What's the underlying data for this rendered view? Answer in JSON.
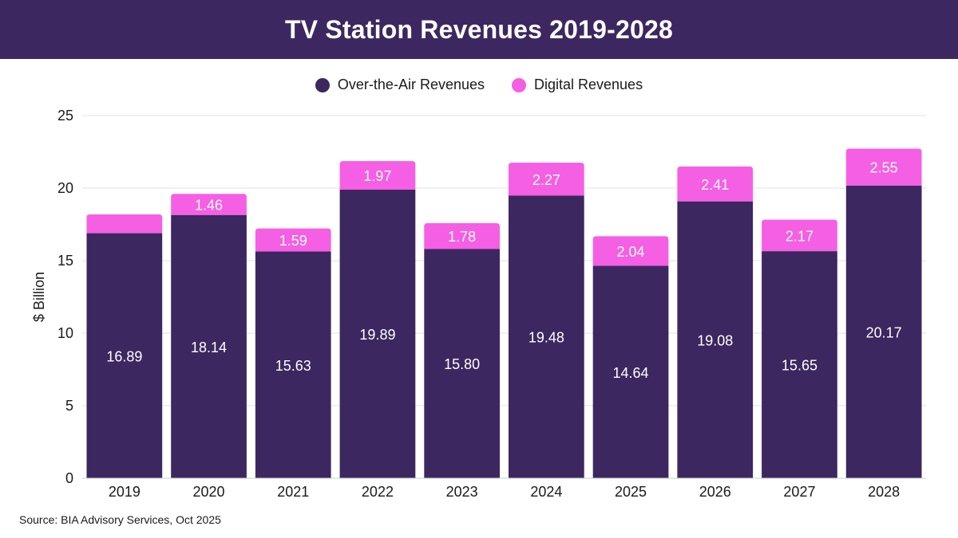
{
  "title": "TV Station Revenues 2019-2028",
  "source": "Source: BIA Advisory Services, Oct 2025",
  "colors": {
    "header_bg": "#3d2760",
    "ota": "#3d2760",
    "digital": "#f55fe4",
    "grid": "#e2e2e2",
    "axis": "#1a1a1a"
  },
  "legend": [
    {
      "label": "Over-the-Air Revenues",
      "color": "#3d2760"
    },
    {
      "label": "Digital Revenues",
      "color": "#f55fe4"
    }
  ],
  "chart_data": {
    "type": "bar",
    "stacked": true,
    "title": "TV Station Revenues 2019-2028",
    "xlabel": "",
    "ylabel": "$ Billion",
    "ylim": [
      0,
      25
    ],
    "yticks": [
      0,
      5,
      10,
      15,
      20,
      25
    ],
    "grid": true,
    "legend_position": "top-center",
    "categories": [
      "2019",
      "2020",
      "2021",
      "2022",
      "2023",
      "2024",
      "2025",
      "2026",
      "2027",
      "2028"
    ],
    "series": [
      {
        "name": "Over-the-Air Revenues",
        "values": [
          16.89,
          18.14,
          15.63,
          19.89,
          15.8,
          19.48,
          14.64,
          19.08,
          15.65,
          20.17
        ],
        "labels": [
          "16.89",
          "18.14",
          "15.63",
          "19.89",
          "15.80",
          "19.48",
          "14.64",
          "19.08",
          "15.65",
          "20.17"
        ]
      },
      {
        "name": "Digital Revenues",
        "values": [
          1.3,
          1.46,
          1.59,
          1.97,
          1.78,
          2.27,
          2.04,
          2.41,
          2.17,
          2.55
        ],
        "labels": [
          "",
          "1.46",
          "1.59",
          "1.97",
          "1.78",
          "2.27",
          "2.04",
          "2.41",
          "2.17",
          "2.55"
        ]
      }
    ]
  }
}
